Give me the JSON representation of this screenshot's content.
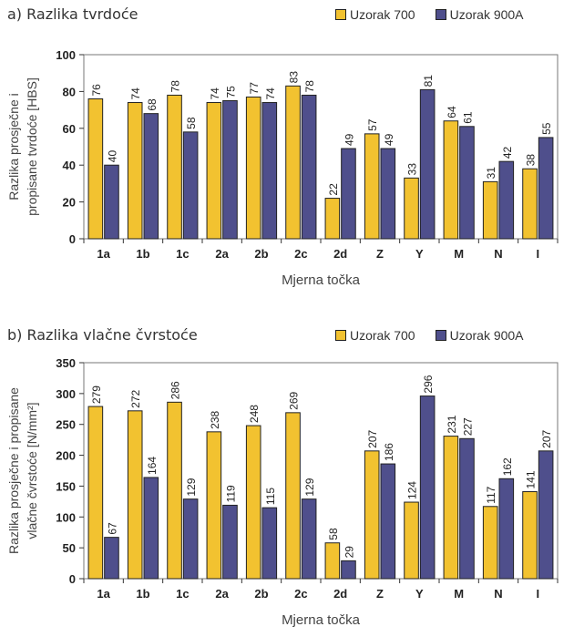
{
  "chart_data": [
    {
      "type": "bar",
      "title": "a) Razlika tvrdoće",
      "xlabel": "Mjerna točka",
      "ylabel_line1": "Razlika prosječne i",
      "ylabel_line2": "propisane tvrdoće [HBS]",
      "categories": [
        "1a",
        "1b",
        "1c",
        "2a",
        "2b",
        "2c",
        "2d",
        "Z",
        "Y",
        "M",
        "N",
        "I"
      ],
      "ylim": [
        0,
        100
      ],
      "yticks": [
        0,
        20,
        40,
        60,
        80,
        100
      ],
      "grid": false,
      "legend_position": "top-right",
      "series": [
        {
          "name": "Uzorak 700",
          "color": "#f2c230",
          "values": [
            76,
            74,
            78,
            74,
            77,
            83,
            22,
            57,
            33,
            64,
            31,
            38
          ]
        },
        {
          "name": "Uzorak 900A",
          "color": "#4f4f8c",
          "values": [
            40,
            68,
            58,
            75,
            74,
            78,
            49,
            49,
            81,
            61,
            42,
            55
          ]
        }
      ]
    },
    {
      "type": "bar",
      "title": "b) Razlika vlačne čvrstoće",
      "xlabel": "Mjerna točka",
      "ylabel_line1": "Razlika prosječne i propisane",
      "ylabel_line2": "vlačne čvrstoće [N/mm²]",
      "categories": [
        "1a",
        "1b",
        "1c",
        "2a",
        "2b",
        "2c",
        "2d",
        "Z",
        "Y",
        "M",
        "N",
        "I"
      ],
      "ylim": [
        0,
        350
      ],
      "yticks": [
        0,
        50,
        100,
        150,
        200,
        250,
        300,
        350
      ],
      "grid": false,
      "legend_position": "top-right",
      "series": [
        {
          "name": "Uzorak 700",
          "color": "#f2c230",
          "values": [
            279,
            272,
            286,
            238,
            248,
            269,
            58,
            207,
            124,
            231,
            117,
            141
          ]
        },
        {
          "name": "Uzorak 900A",
          "color": "#4f4f8c",
          "values": [
            67,
            164,
            129,
            119,
            115,
            129,
            29,
            186,
            296,
            227,
            162,
            207
          ]
        }
      ]
    }
  ]
}
